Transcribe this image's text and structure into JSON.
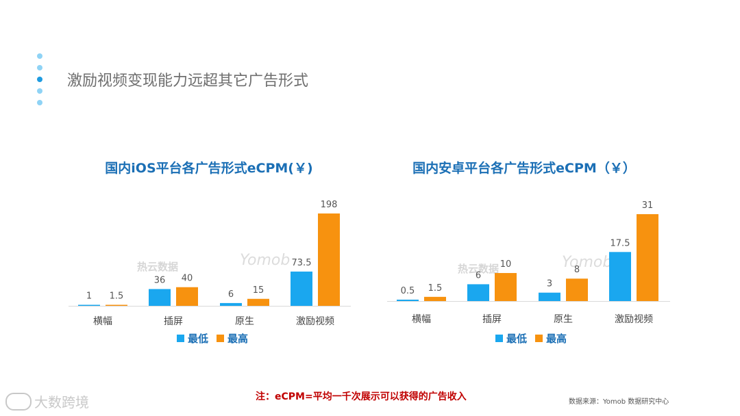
{
  "slide": {
    "title": "激励视频变现能力远超其它广告形式",
    "note": "注：eCPM=平均一千次展示可以获得的广告收入",
    "source": "数据来源：Yomob 数据研究中心",
    "corner_brand": "大数跨境"
  },
  "watermarks": {
    "brand_cn": "热云数据",
    "brand_en": "Yomob"
  },
  "colors": {
    "low": "#1aa7ef",
    "high": "#f7920f",
    "title": "#1b6fb5",
    "axis": "#d9d9d9",
    "label": "#555555"
  },
  "chart_data": [
    {
      "type": "bar",
      "title": "国内iOS平台各广告形式eCPM(￥)",
      "categories": [
        "横幅",
        "插屏",
        "原生",
        "激励视频"
      ],
      "series": [
        {
          "name": "最低",
          "values": [
            1,
            36,
            6,
            73.5
          ]
        },
        {
          "name": "最高",
          "values": [
            1.5,
            40,
            15,
            198
          ]
        }
      ],
      "ylim": [
        0,
        198
      ],
      "legend": "bottom"
    },
    {
      "type": "bar",
      "title": "国内安卓平台各广告形式eCPM（￥）",
      "categories": [
        "横幅",
        "插屏",
        "原生",
        "激励视频"
      ],
      "series": [
        {
          "name": "最低",
          "values": [
            0.5,
            6,
            3,
            17.5
          ]
        },
        {
          "name": "最高",
          "values": [
            1.5,
            10,
            8,
            31
          ]
        }
      ],
      "ylim": [
        0,
        31
      ],
      "legend": "bottom"
    }
  ]
}
